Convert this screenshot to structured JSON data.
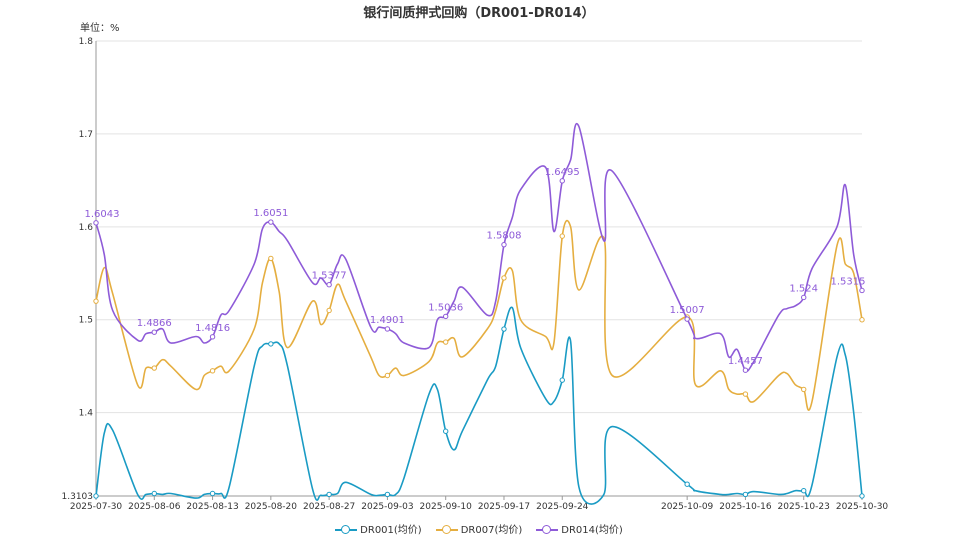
{
  "chart_data": {
    "type": "line",
    "title": "银行间质押式回购（DR001-DR014）",
    "unit_label": "单位：%",
    "xlabel": "",
    "ylabel": "",
    "ylim": [
      1.3103,
      1.8
    ],
    "y_ticks": [
      "1.3103",
      "1.4",
      "1.5",
      "1.6",
      "1.7",
      "1.8"
    ],
    "x_ticks": [
      "2025-07-30",
      "2025-08-06",
      "2025-08-13",
      "2025-08-20",
      "2025-08-27",
      "2025-09-03",
      "2025-09-10",
      "2025-09-17",
      "2025-09-24",
      "2025-10-09",
      "2025-10-16",
      "2025-10-23",
      "2025-10-30"
    ],
    "grid": true,
    "legend_position": "bottom",
    "series": [
      {
        "name": "DR001(均价)",
        "color": "#1a9bc4",
        "points": [
          [
            "2025-07-30",
            1.3103
          ],
          [
            "2025-07-31",
            1.378
          ],
          [
            "2025-08-01",
            1.381
          ],
          [
            "2025-08-04",
            1.312
          ],
          [
            "2025-08-05",
            1.312
          ],
          [
            "2025-08-06",
            1.313
          ],
          [
            "2025-08-07",
            1.312
          ],
          [
            "2025-08-08",
            1.313
          ],
          [
            "2025-08-11",
            1.308
          ],
          [
            "2025-08-12",
            1.312
          ],
          [
            "2025-08-13",
            1.313
          ],
          [
            "2025-08-14",
            1.313
          ],
          [
            "2025-08-15",
            1.32
          ],
          [
            "2025-08-18",
            1.45
          ],
          [
            "2025-08-19",
            1.472
          ],
          [
            "2025-08-20",
            1.474
          ],
          [
            "2025-08-21",
            1.474
          ],
          [
            "2025-08-22",
            1.45
          ],
          [
            "2025-08-25",
            1.318
          ],
          [
            "2025-08-26",
            1.311
          ],
          [
            "2025-08-27",
            1.312
          ],
          [
            "2025-08-28",
            1.313
          ],
          [
            "2025-08-29",
            1.325
          ],
          [
            "2025-09-01",
            1.312
          ],
          [
            "2025-09-02",
            1.311
          ],
          [
            "2025-09-03",
            1.312
          ],
          [
            "2025-09-04",
            1.312
          ],
          [
            "2025-09-05",
            1.33
          ],
          [
            "2025-09-08",
            1.42
          ],
          [
            "2025-09-09",
            1.425
          ],
          [
            "2025-09-10",
            1.38
          ],
          [
            "2025-09-11",
            1.36
          ],
          [
            "2025-09-12",
            1.38
          ],
          [
            "2025-09-15",
            1.435
          ],
          [
            "2025-09-16",
            1.45
          ],
          [
            "2025-09-17",
            1.49
          ],
          [
            "2025-09-18",
            1.513
          ],
          [
            "2025-09-19",
            1.47
          ],
          [
            "2025-09-22",
            1.415
          ],
          [
            "2025-09-23",
            1.412
          ],
          [
            "2025-09-24",
            1.435
          ],
          [
            "2025-09-25",
            1.477
          ],
          [
            "2025-09-26",
            1.32
          ],
          [
            "2025-09-29",
            1.312
          ],
          [
            "2025-09-30",
            1.385
          ],
          [
            "2025-10-09",
            1.323
          ],
          [
            "2025-10-10",
            1.316
          ],
          [
            "2025-10-13",
            1.312
          ],
          [
            "2025-10-14",
            1.312
          ],
          [
            "2025-10-15",
            1.313
          ],
          [
            "2025-10-16",
            1.312
          ],
          [
            "2025-10-17",
            1.315
          ],
          [
            "2025-10-20",
            1.312
          ],
          [
            "2025-10-21",
            1.313
          ],
          [
            "2025-10-22",
            1.316
          ],
          [
            "2025-10-23",
            1.316
          ],
          [
            "2025-10-24",
            1.322
          ],
          [
            "2025-10-27",
            1.46
          ],
          [
            "2025-10-28",
            1.462
          ],
          [
            "2025-10-29",
            1.4
          ],
          [
            "2025-10-30",
            1.3103
          ]
        ]
      },
      {
        "name": "DR007(均价)",
        "color": "#e5ae40",
        "points": [
          [
            "2025-07-30",
            1.52
          ],
          [
            "2025-07-31",
            1.556
          ],
          [
            "2025-08-01",
            1.528
          ],
          [
            "2025-08-04",
            1.43
          ],
          [
            "2025-08-05",
            1.448
          ],
          [
            "2025-08-06",
            1.448
          ],
          [
            "2025-08-07",
            1.457
          ],
          [
            "2025-08-08",
            1.45
          ],
          [
            "2025-08-11",
            1.425
          ],
          [
            "2025-08-12",
            1.44
          ],
          [
            "2025-08-13",
            1.445
          ],
          [
            "2025-08-14",
            1.45
          ],
          [
            "2025-08-15",
            1.445
          ],
          [
            "2025-08-18",
            1.49
          ],
          [
            "2025-08-19",
            1.54
          ],
          [
            "2025-08-20",
            1.566
          ],
          [
            "2025-08-21",
            1.53
          ],
          [
            "2025-08-22",
            1.47
          ],
          [
            "2025-08-25",
            1.52
          ],
          [
            "2025-08-26",
            1.495
          ],
          [
            "2025-08-27",
            1.51
          ],
          [
            "2025-08-28",
            1.538
          ],
          [
            "2025-08-29",
            1.52
          ],
          [
            "2025-09-01",
            1.46
          ],
          [
            "2025-09-02",
            1.44
          ],
          [
            "2025-09-03",
            1.44
          ],
          [
            "2025-09-04",
            1.448
          ],
          [
            "2025-09-05",
            1.44
          ],
          [
            "2025-09-08",
            1.455
          ],
          [
            "2025-09-09",
            1.475
          ],
          [
            "2025-09-10",
            1.476
          ],
          [
            "2025-09-11",
            1.48
          ],
          [
            "2025-09-12",
            1.46
          ],
          [
            "2025-09-15",
            1.49
          ],
          [
            "2025-09-16",
            1.51
          ],
          [
            "2025-09-17",
            1.545
          ],
          [
            "2025-09-18",
            1.553
          ],
          [
            "2025-09-19",
            1.5
          ],
          [
            "2025-09-22",
            1.482
          ],
          [
            "2025-09-23",
            1.475
          ],
          [
            "2025-09-24",
            1.59
          ],
          [
            "2025-09-25",
            1.6
          ],
          [
            "2025-09-26",
            1.532
          ],
          [
            "2025-09-29",
            1.588
          ],
          [
            "2025-09-30",
            1.44
          ],
          [
            "2025-10-09",
            1.503
          ],
          [
            "2025-10-10",
            1.43
          ],
          [
            "2025-10-13",
            1.445
          ],
          [
            "2025-10-14",
            1.425
          ],
          [
            "2025-10-15",
            1.42
          ],
          [
            "2025-10-16",
            1.42
          ],
          [
            "2025-10-17",
            1.412
          ],
          [
            "2025-10-20",
            1.44
          ],
          [
            "2025-10-21",
            1.442
          ],
          [
            "2025-10-22",
            1.43
          ],
          [
            "2025-10-23",
            1.425
          ],
          [
            "2025-10-24",
            1.412
          ],
          [
            "2025-10-27",
            1.58
          ],
          [
            "2025-10-28",
            1.56
          ],
          [
            "2025-10-29",
            1.55
          ],
          [
            "2025-10-30",
            1.5
          ]
        ]
      },
      {
        "name": "DR014(均价)",
        "color": "#8e5bd8",
        "points": [
          [
            "2025-07-30",
            1.6043
          ],
          [
            "2025-07-31",
            1.57
          ],
          [
            "2025-08-01",
            1.51
          ],
          [
            "2025-08-04",
            1.478
          ],
          [
            "2025-08-05",
            1.485
          ],
          [
            "2025-08-06",
            1.4866
          ],
          [
            "2025-08-07",
            1.49
          ],
          [
            "2025-08-08",
            1.475
          ],
          [
            "2025-08-11",
            1.482
          ],
          [
            "2025-08-12",
            1.475
          ],
          [
            "2025-08-13",
            1.4816
          ],
          [
            "2025-08-14",
            1.505
          ],
          [
            "2025-08-15",
            1.51
          ],
          [
            "2025-08-18",
            1.56
          ],
          [
            "2025-08-19",
            1.598
          ],
          [
            "2025-08-20",
            1.6051
          ],
          [
            "2025-08-21",
            1.595
          ],
          [
            "2025-08-22",
            1.585
          ],
          [
            "2025-08-25",
            1.54
          ],
          [
            "2025-08-26",
            1.545
          ],
          [
            "2025-08-27",
            1.5377
          ],
          [
            "2025-08-28",
            1.56
          ],
          [
            "2025-08-29",
            1.565
          ],
          [
            "2025-09-01",
            1.492
          ],
          [
            "2025-09-02",
            1.492
          ],
          [
            "2025-09-03",
            1.4901
          ],
          [
            "2025-09-04",
            1.485
          ],
          [
            "2025-09-05",
            1.475
          ],
          [
            "2025-09-08",
            1.47
          ],
          [
            "2025-09-09",
            1.5
          ],
          [
            "2025-09-10",
            1.5036
          ],
          [
            "2025-09-11",
            1.52
          ],
          [
            "2025-09-12",
            1.535
          ],
          [
            "2025-09-15",
            1.505
          ],
          [
            "2025-09-16",
            1.52
          ],
          [
            "2025-09-17",
            1.5808
          ],
          [
            "2025-09-18",
            1.61
          ],
          [
            "2025-09-19",
            1.64
          ],
          [
            "2025-09-22",
            1.664
          ],
          [
            "2025-09-23",
            1.595
          ],
          [
            "2025-09-24",
            1.6495
          ],
          [
            "2025-09-25",
            1.672
          ],
          [
            "2025-09-26",
            1.708
          ],
          [
            "2025-09-29",
            1.585
          ],
          [
            "2025-09-30",
            1.66
          ],
          [
            "2025-10-09",
            1.5007
          ],
          [
            "2025-10-10",
            1.48
          ],
          [
            "2025-10-13",
            1.485
          ],
          [
            "2025-10-14",
            1.46
          ],
          [
            "2025-10-15",
            1.468
          ],
          [
            "2025-10-16",
            1.4457
          ],
          [
            "2025-10-17",
            1.455
          ],
          [
            "2025-10-20",
            1.505
          ],
          [
            "2025-10-21",
            1.512
          ],
          [
            "2025-10-22",
            1.515
          ],
          [
            "2025-10-23",
            1.524
          ],
          [
            "2025-10-24",
            1.555
          ],
          [
            "2025-10-27",
            1.6
          ],
          [
            "2025-10-28",
            1.645
          ],
          [
            "2025-10-29",
            1.57
          ],
          [
            "2025-10-30",
            1.5315
          ]
        ]
      }
    ],
    "annotations": [
      {
        "series": 2,
        "date": "2025-07-30",
        "label": "1.6043"
      },
      {
        "series": 2,
        "date": "2025-08-06",
        "label": "1.4866"
      },
      {
        "series": 2,
        "date": "2025-08-13",
        "label": "1.4816"
      },
      {
        "series": 2,
        "date": "2025-08-20",
        "label": "1.6051"
      },
      {
        "series": 2,
        "date": "2025-08-27",
        "label": "1.5377"
      },
      {
        "series": 2,
        "date": "2025-09-03",
        "label": "1.4901"
      },
      {
        "series": 2,
        "date": "2025-09-10",
        "label": "1.5036"
      },
      {
        "series": 2,
        "date": "2025-09-17",
        "label": "1.5808"
      },
      {
        "series": 2,
        "date": "2025-09-24",
        "label": "1.6495"
      },
      {
        "series": 2,
        "date": "2025-10-09",
        "label": "1.5007"
      },
      {
        "series": 2,
        "date": "2025-10-16",
        "label": "1.4457"
      },
      {
        "series": 2,
        "date": "2025-10-23",
        "label": "1.524"
      },
      {
        "series": 2,
        "date": "2025-10-30",
        "label": "1.5315"
      }
    ],
    "marker_dates": [
      "2025-07-30",
      "2025-08-06",
      "2025-08-13",
      "2025-08-20",
      "2025-08-27",
      "2025-09-03",
      "2025-09-10",
      "2025-09-17",
      "2025-09-24",
      "2025-10-09",
      "2025-10-16",
      "2025-10-23",
      "2025-10-30"
    ]
  }
}
